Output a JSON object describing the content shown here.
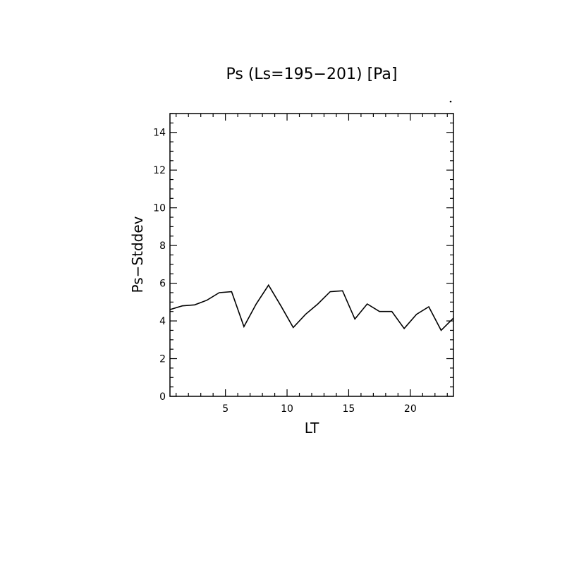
{
  "chart_data": {
    "type": "line",
    "title": "Ps (Ls=195−201) [Pa]",
    "xlabel": "LT",
    "ylabel": "Ps−Stddev",
    "xlim": [
      0.5,
      23.5
    ],
    "ylim": [
      0,
      15
    ],
    "x_ticks": [
      {
        "value": 5,
        "label": "5"
      },
      {
        "value": 10,
        "label": "10"
      },
      {
        "value": 15,
        "label": "15"
      },
      {
        "value": 20,
        "label": "20"
      }
    ],
    "y_ticks": [
      {
        "value": 0,
        "label": "0"
      },
      {
        "value": 2,
        "label": "2"
      },
      {
        "value": 4,
        "label": "4"
      },
      {
        "value": 6,
        "label": "6"
      },
      {
        "value": 8,
        "label": "8"
      },
      {
        "value": 10,
        "label": "10"
      },
      {
        "value": 12,
        "label": "12"
      },
      {
        "value": 14,
        "label": "14"
      }
    ],
    "x_minor_step": 1,
    "y_minor_step": 0.5,
    "grid": false,
    "legend": "none",
    "series": [
      {
        "color": "#000000",
        "x": [
          0.5,
          1.5,
          2.5,
          3.5,
          4.5,
          5.5,
          6.5,
          7.5,
          8.5,
          9.5,
          10.5,
          11.5,
          12.5,
          13.5,
          14.5,
          15.5,
          16.5,
          17.5,
          18.5,
          19.5,
          20.5,
          21.5,
          22.5,
          23.5
        ],
        "values": [
          4.6,
          4.8,
          4.85,
          5.1,
          5.5,
          5.55,
          3.7,
          4.9,
          5.9,
          4.8,
          3.65,
          4.35,
          4.9,
          5.55,
          5.6,
          4.1,
          4.9,
          4.5,
          4.5,
          3.6,
          4.35,
          4.75,
          3.5,
          4.15
        ]
      }
    ]
  }
}
